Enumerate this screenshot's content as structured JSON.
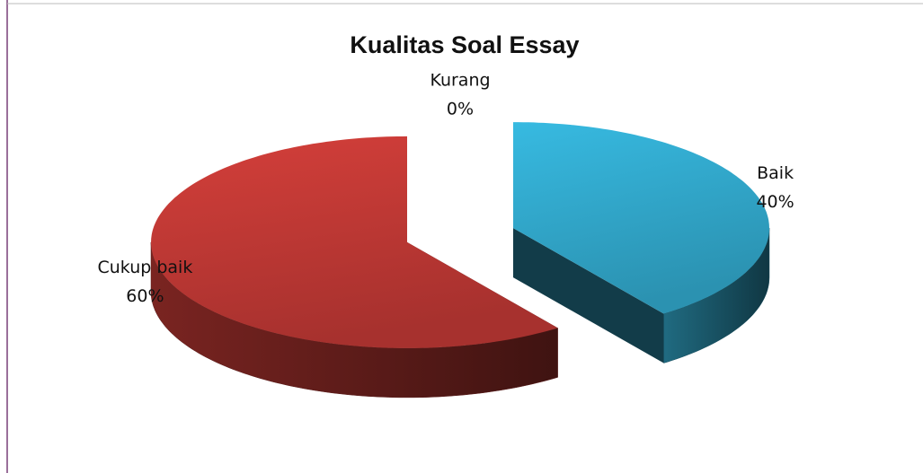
{
  "chart_data": {
    "type": "pie3d",
    "title": "Kualitas Soal Essay",
    "categories": [
      "Baik",
      "Cukup baik",
      "Kurang"
    ],
    "values": [
      40,
      60,
      0
    ],
    "value_labels": [
      "40%",
      "60%",
      "0%"
    ],
    "colors": [
      "#33acd0",
      "#c43a36",
      "#8aa84a"
    ]
  }
}
